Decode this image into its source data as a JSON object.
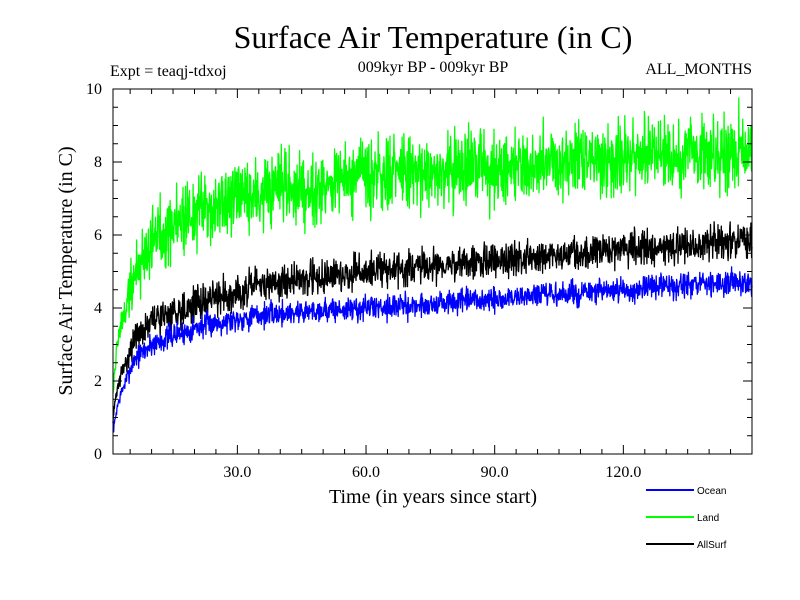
{
  "chart_data": {
    "type": "line",
    "title": "Surface Air Temperature (in C)",
    "subtitle_left": "Expt = teaqj-tdxoj",
    "subtitle_center": "009kyr BP - 009kyr BP",
    "subtitle_right": "ALL_MONTHS",
    "xlabel": "Time (in years since start)",
    "ylabel": "Surface Air Temperature (in C)",
    "xlim": [
      1,
      150
    ],
    "ylim": [
      0,
      10
    ],
    "x_ticks": [
      30,
      60,
      90,
      120
    ],
    "x_tick_labels": [
      "30.0",
      "60.0",
      "90.0",
      "120.0"
    ],
    "y_ticks": [
      0,
      2,
      4,
      6,
      8,
      10
    ],
    "y_tick_labels": [
      "0",
      "2",
      "4",
      "6",
      "8",
      "10"
    ],
    "grid": false,
    "legend_position": "bottom-right",
    "series": [
      {
        "name": "Ocean",
        "color": "#0000ff",
        "x": [
          1,
          2,
          3,
          4,
          5,
          6,
          8,
          10,
          12,
          15,
          18,
          20,
          25,
          30,
          35,
          40,
          45,
          50,
          55,
          60,
          65,
          70,
          75,
          80,
          85,
          90,
          95,
          100,
          105,
          110,
          115,
          120,
          125,
          130,
          135,
          140,
          145,
          150
        ],
        "values": [
          0.6,
          1.3,
          1.7,
          2.0,
          2.3,
          2.6,
          2.8,
          3.0,
          3.1,
          3.25,
          3.35,
          3.45,
          3.6,
          3.7,
          3.8,
          3.85,
          3.9,
          3.95,
          3.95,
          4.0,
          4.05,
          4.05,
          4.1,
          4.15,
          4.2,
          4.2,
          4.3,
          4.35,
          4.35,
          4.4,
          4.45,
          4.45,
          4.55,
          4.6,
          4.6,
          4.65,
          4.7,
          4.75
        ]
      },
      {
        "name": "Land",
        "color": "#00ff00",
        "x": [
          1,
          2,
          3,
          4,
          5,
          6,
          8,
          10,
          12,
          15,
          18,
          20,
          25,
          30,
          35,
          40,
          45,
          50,
          55,
          60,
          65,
          70,
          75,
          80,
          85,
          90,
          95,
          100,
          105,
          110,
          115,
          120,
          125,
          130,
          135,
          140,
          145,
          150
        ],
        "values": [
          1.8,
          3.0,
          3.6,
          4.0,
          4.5,
          4.9,
          5.4,
          5.8,
          6.1,
          6.3,
          6.5,
          6.6,
          6.8,
          6.95,
          7.1,
          7.2,
          7.3,
          7.4,
          7.5,
          7.55,
          7.6,
          7.7,
          7.75,
          7.8,
          7.85,
          7.9,
          7.95,
          8.0,
          8.05,
          8.05,
          8.1,
          8.15,
          8.2,
          8.25,
          8.25,
          8.3,
          8.35,
          8.4
        ]
      },
      {
        "name": "AllSurf",
        "color": "#000000",
        "x": [
          1,
          2,
          3,
          4,
          5,
          6,
          8,
          10,
          12,
          15,
          18,
          20,
          25,
          30,
          35,
          40,
          45,
          50,
          55,
          60,
          65,
          70,
          75,
          80,
          85,
          90,
          95,
          100,
          105,
          110,
          115,
          120,
          125,
          130,
          135,
          140,
          145,
          150
        ],
        "values": [
          1.0,
          1.8,
          2.2,
          2.5,
          2.85,
          3.15,
          3.4,
          3.6,
          3.75,
          3.9,
          4.0,
          4.1,
          4.3,
          4.45,
          4.6,
          4.7,
          4.8,
          4.85,
          4.9,
          5.0,
          5.05,
          5.1,
          5.15,
          5.2,
          5.25,
          5.3,
          5.35,
          5.4,
          5.45,
          5.5,
          5.55,
          5.6,
          5.65,
          5.7,
          5.7,
          5.75,
          5.8,
          5.85
        ]
      }
    ]
  }
}
